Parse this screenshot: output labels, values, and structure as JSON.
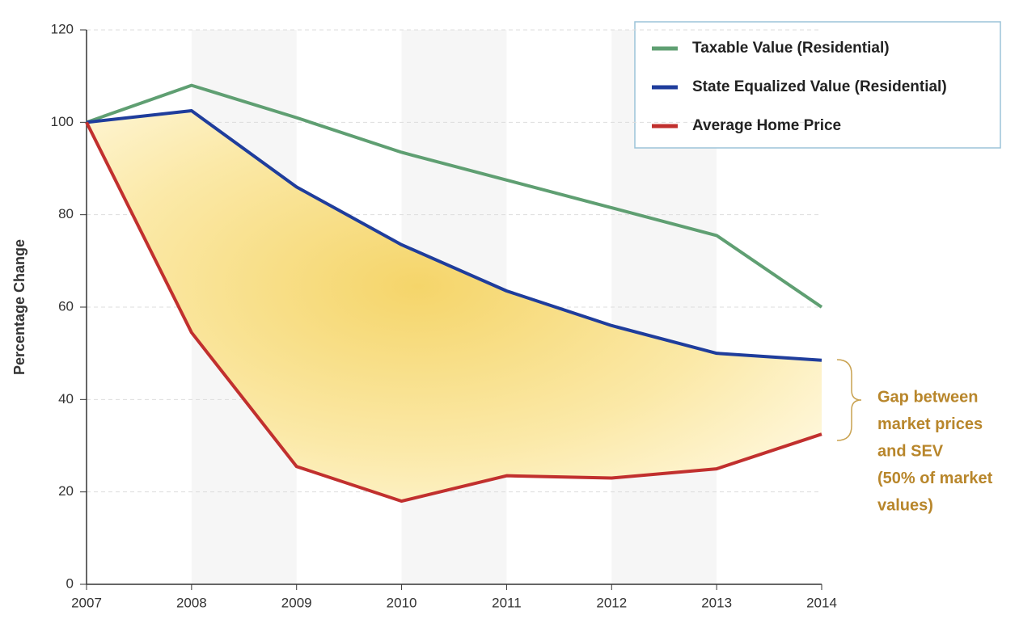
{
  "chart_data": {
    "type": "line",
    "y_label": "Percentage Change",
    "x": [
      2007,
      2008,
      2009,
      2010,
      2011,
      2012,
      2013,
      2014
    ],
    "xlim": [
      2007,
      2014
    ],
    "xticks": [
      2007,
      2008,
      2009,
      2010,
      2011,
      2012,
      2013,
      2014
    ],
    "ylim": [
      0,
      120
    ],
    "yticks": [
      0,
      20,
      40,
      60,
      80,
      100,
      120
    ],
    "grid": true,
    "legend": "upper right",
    "series": [
      {
        "name": "Taxable Value (Residential)",
        "color": "#5f9f72",
        "values": [
          100,
          108,
          101,
          93.5,
          87.5,
          81.5,
          75.5,
          60
        ]
      },
      {
        "name": "State Equalized Value (Residential)",
        "color": "#1f3d9c",
        "values": [
          100,
          102.5,
          86,
          73.5,
          63.5,
          56,
          50,
          48.5
        ]
      },
      {
        "name": "Average Home Price",
        "color": "#c1302e",
        "values": [
          100,
          54.5,
          25.5,
          18,
          23.5,
          23,
          25,
          32.5
        ]
      }
    ],
    "annotation": [
      "Gap between",
      "market prices",
      "and SEV",
      "(50% of market",
      "values)"
    ]
  }
}
